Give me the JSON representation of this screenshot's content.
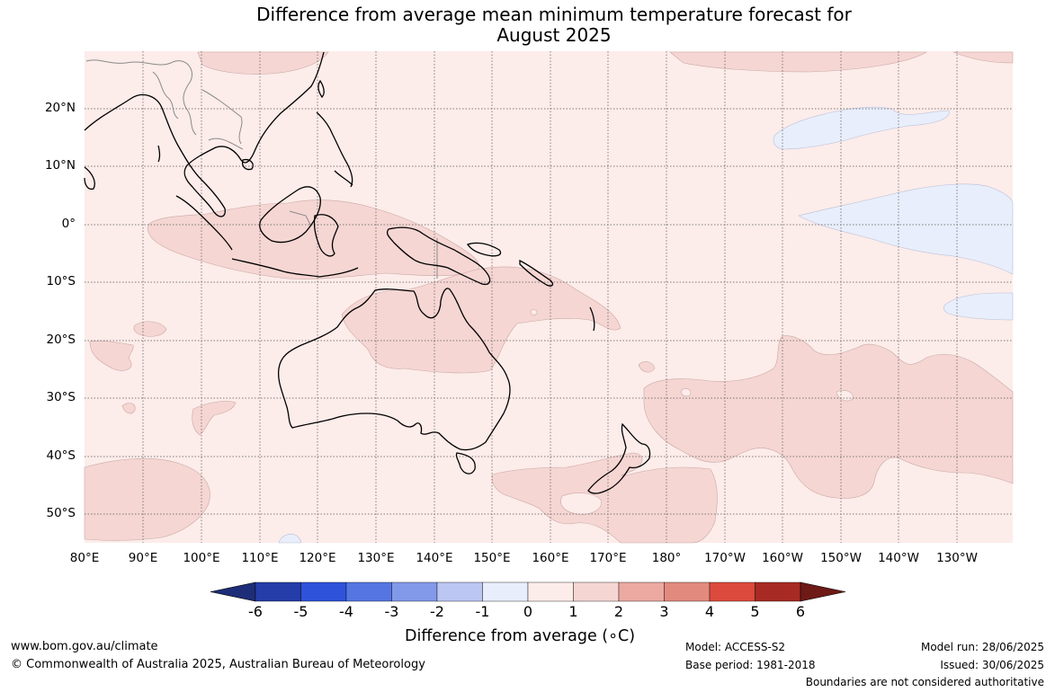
{
  "title": {
    "line1": "Difference from average mean minimum temperature forecast for",
    "line2": "August 2025"
  },
  "map": {
    "lat_labels": [
      "20°N",
      "10°N",
      "0°",
      "10°S",
      "20°S",
      "30°S",
      "40°S",
      "50°S"
    ],
    "lon_labels": [
      "80°E",
      "90°E",
      "100°E",
      "110°E",
      "120°E",
      "130°E",
      "140°E",
      "150°E",
      "160°E",
      "170°E",
      "180°",
      "170°W",
      "160°W",
      "150°W",
      "140°W",
      "130°W"
    ],
    "background_anomaly_range": "0 to 1",
    "colors": {
      "range_0_1": "#fcecea",
      "range_1_2": "#f5d6d3",
      "range_m1_0": "#e8eefb"
    }
  },
  "colorbar": {
    "title": "Difference from average (∘C)",
    "tick_labels": [
      "-6",
      "-5",
      "-4",
      "-3",
      "-2",
      "-1",
      "0",
      "1",
      "2",
      "3",
      "4",
      "5",
      "6"
    ],
    "colors": [
      "#1e2d78",
      "#253da8",
      "#2e52d9",
      "#5575e3",
      "#8299ea",
      "#bcc6f2",
      "#e8eefb",
      "#fcecea",
      "#f5d6d3",
      "#eba9a1",
      "#e28a7d",
      "#db4a3c",
      "#a82a24",
      "#6e1a17"
    ]
  },
  "footer": {
    "url": "www.bom.gov.au/climate",
    "copyright": "© Commonwealth of Australia 2025, Australian Bureau of Meteorology",
    "model": "Model: ACCESS-S2",
    "base_period": "Base period: 1981-2018",
    "model_run": "Model run: 28/06/2025",
    "issued": "Issued: 30/06/2025",
    "disclaimer": "Boundaries are not considered authoritative"
  }
}
